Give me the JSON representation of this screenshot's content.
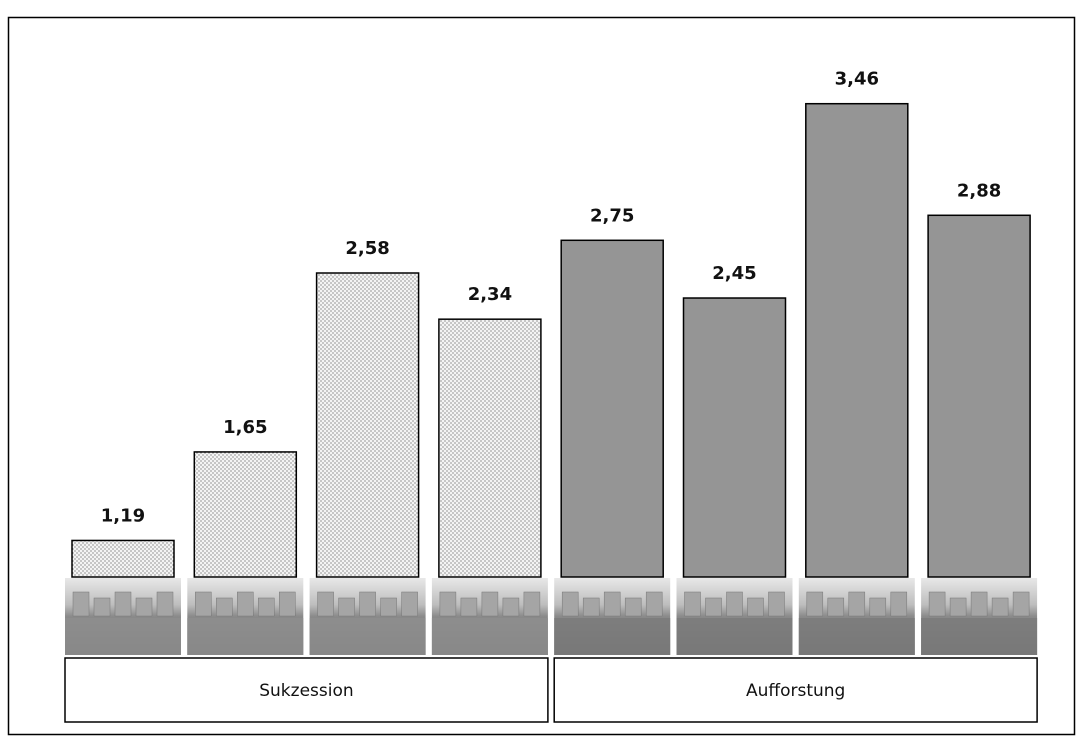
{
  "chart_data": {
    "type": "bar",
    "ylim": [
      1,
      3.5
    ],
    "groups": [
      {
        "label": "Sukzession",
        "values": [
          1.19,
          1.65,
          2.58,
          2.34
        ],
        "value_labels": [
          "1,19",
          "1,65",
          "2,58",
          "2,34"
        ],
        "color": "#f2f2f2",
        "pattern": "dots"
      },
      {
        "label": "Aufforstung",
        "values": [
          2.75,
          2.45,
          3.46,
          2.88
        ],
        "value_labels": [
          "2,75",
          "2,45",
          "3,46",
          "2,88"
        ],
        "color": "#959595",
        "pattern": "solid"
      }
    ]
  }
}
